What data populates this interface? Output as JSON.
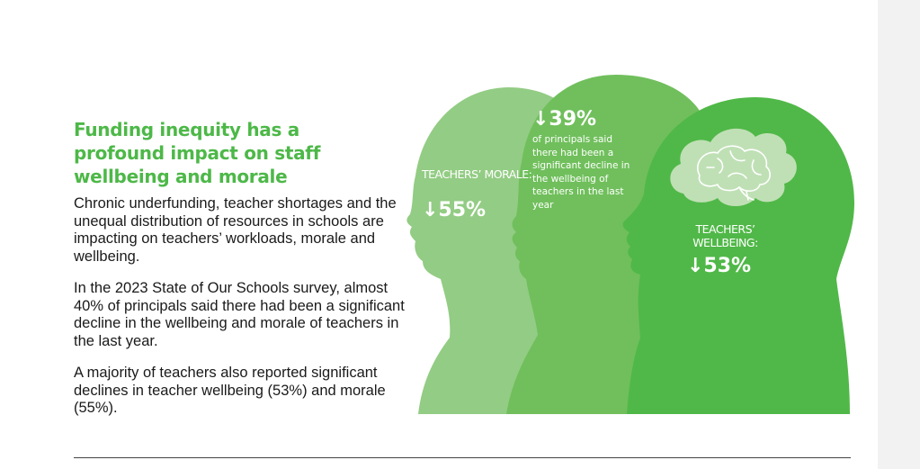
{
  "heading": "Funding inequity has a profound impact on staff wellbeing and morale",
  "paragraphs": [
    "Chronic underfunding, teacher shortages and the unequal distribution of resources in schools are impacting on teachers’ workloads, morale and wellbeing.",
    "In the 2023 State of Our Schools survey, almost 40% of principals said there had been a significant decline in the wellbeing and morale of teachers in the last year.",
    "A majority of teachers also reported significant declines in teacher wellbeing (53%) and morale (55%)."
  ],
  "infographic": {
    "morale": {
      "label": "TEACHERS’ MORALE:",
      "value": "↓55%",
      "percent": 55
    },
    "principals": {
      "value": "↓39%",
      "percent": 39,
      "text": "of principals said there had been a significant decline in the wellbeing of teachers in the last year"
    },
    "wellbeing": {
      "label": "TEACHERS’ WELLBEING:",
      "value": "↓53%",
      "percent": 53
    },
    "icon": "brain-icon",
    "colors": {
      "light": "#93cc84",
      "mid": "#70bf5c",
      "dark": "#50b848",
      "cloud": "#bfe0b5",
      "heading": "#4db848"
    }
  }
}
